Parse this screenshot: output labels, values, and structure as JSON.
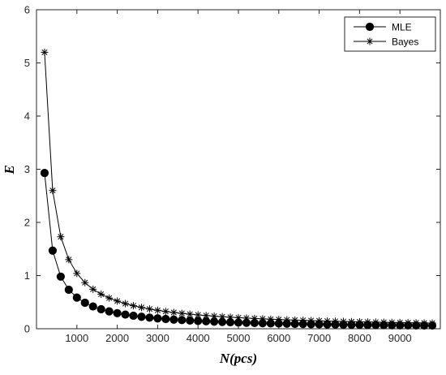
{
  "chart_data": {
    "type": "line",
    "title": "",
    "xlabel": "N(pcs)",
    "ylabel": "E",
    "xlim": [
      0,
      10000
    ],
    "ylim": [
      0,
      6
    ],
    "xticks": [
      1000,
      2000,
      3000,
      4000,
      5000,
      6000,
      7000,
      8000,
      9000
    ],
    "yticks": [
      0,
      1,
      2,
      3,
      4,
      5,
      6
    ],
    "grid": false,
    "legend_position": "top-right",
    "x": [
      200,
      400,
      600,
      800,
      1000,
      1200,
      1400,
      1600,
      1800,
      2000,
      2200,
      2400,
      2600,
      2800,
      3000,
      3200,
      3400,
      3600,
      3800,
      4000,
      4200,
      4400,
      4600,
      4800,
      5000,
      5200,
      5400,
      5600,
      5800,
      6000,
      6200,
      6400,
      6600,
      6800,
      7000,
      7200,
      7400,
      7600,
      7800,
      8000,
      8200,
      8400,
      8600,
      8800,
      9000,
      9200,
      9400,
      9600,
      9800
    ],
    "series": [
      {
        "name": "MLE",
        "marker": "circle",
        "values": [
          2.93,
          1.47,
          0.98,
          0.733,
          0.586,
          0.488,
          0.419,
          0.366,
          0.326,
          0.293,
          0.266,
          0.244,
          0.225,
          0.209,
          0.195,
          0.183,
          0.172,
          0.163,
          0.154,
          0.147,
          0.14,
          0.133,
          0.127,
          0.122,
          0.117,
          0.113,
          0.109,
          0.105,
          0.101,
          0.098,
          0.095,
          0.092,
          0.089,
          0.086,
          0.084,
          0.081,
          0.079,
          0.077,
          0.075,
          0.073,
          0.071,
          0.07,
          0.068,
          0.067,
          0.065,
          0.064,
          0.062,
          0.061,
          0.06
        ]
      },
      {
        "name": "Bayes",
        "marker": "asterisk",
        "values": [
          5.2,
          2.6,
          1.73,
          1.3,
          1.04,
          0.867,
          0.743,
          0.65,
          0.578,
          0.52,
          0.473,
          0.433,
          0.4,
          0.371,
          0.347,
          0.325,
          0.306,
          0.289,
          0.274,
          0.26,
          0.248,
          0.236,
          0.226,
          0.217,
          0.208,
          0.2,
          0.193,
          0.186,
          0.179,
          0.173,
          0.168,
          0.163,
          0.158,
          0.153,
          0.149,
          0.144,
          0.141,
          0.137,
          0.133,
          0.13,
          0.127,
          0.124,
          0.121,
          0.118,
          0.116,
          0.113,
          0.111,
          0.108,
          0.106
        ]
      }
    ]
  }
}
